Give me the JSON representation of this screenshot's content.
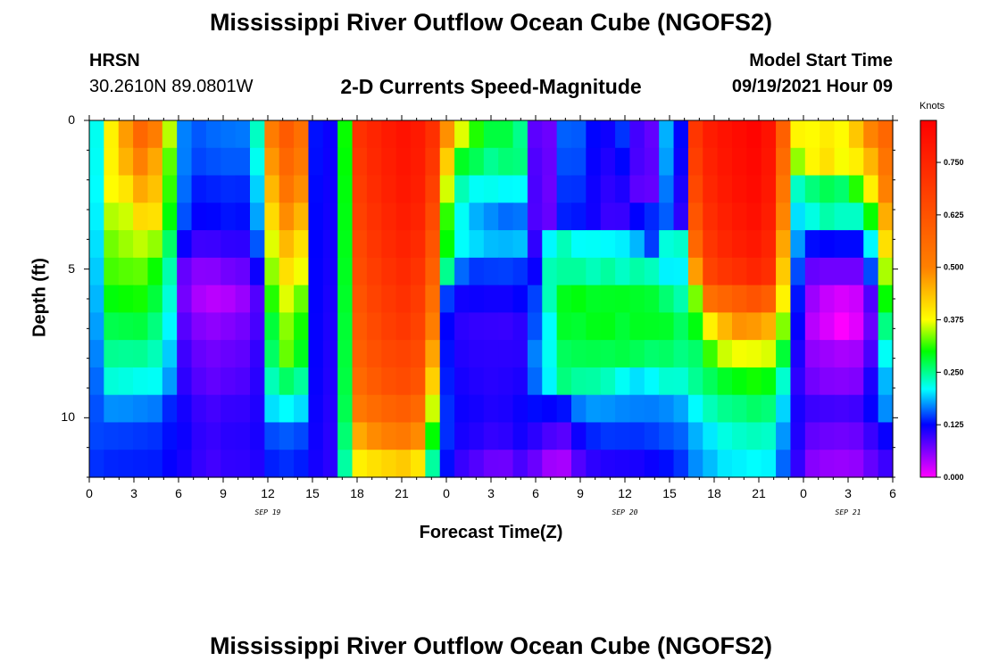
{
  "page": {
    "title_top": "Mississippi River Outflow Ocean Cube (NGOFS2)",
    "title_bottom": "Mississippi River Outflow Ocean Cube (NGOFS2)",
    "station_code": "HRSN",
    "coordinates": "30.2610N  89.0801W",
    "model_start_label": "Model Start Time",
    "model_start_value": "09/19/2021 Hour 09"
  },
  "chart_data": {
    "type": "heatmap",
    "title": "2-D Currents Speed-Magnitude",
    "xlabel": "Forecast Time(Z)",
    "ylabel": "Depth (ft)",
    "x_hours_range": [
      0,
      54
    ],
    "y_depth_range_ft": [
      0,
      12
    ],
    "x_tick_labels": [
      "0",
      "3",
      "6",
      "9",
      "12",
      "15",
      "18",
      "21",
      "0",
      "3",
      "6",
      "9",
      "12",
      "15",
      "18",
      "21",
      "0",
      "3",
      "6"
    ],
    "y_tick_labels": [
      "0",
      "5",
      "10"
    ],
    "y_tick_values": [
      0,
      5,
      10
    ],
    "date_labels": [
      {
        "text": "SEP 19",
        "hour": 12
      },
      {
        "text": "SEP 20",
        "hour": 36
      },
      {
        "text": "SEP 21",
        "hour": 51
      }
    ],
    "colorbar": {
      "unit": "Knots",
      "range": [
        0,
        0.85
      ],
      "tick_labels": [
        "0.750",
        "0.625",
        "0.500",
        "0.375",
        "0.250",
        "0.125",
        "0.000"
      ],
      "tick_values": [
        0.75,
        0.625,
        0.5,
        0.375,
        0.25,
        0.125,
        0.0
      ],
      "stops": [
        {
          "v": 0.0,
          "color": "#ff00ff"
        },
        {
          "v": 0.125,
          "color": "#0000ff"
        },
        {
          "v": 0.21,
          "color": "#00ffff"
        },
        {
          "v": 0.3,
          "color": "#00ff00"
        },
        {
          "v": 0.375,
          "color": "#ffff00"
        },
        {
          "v": 0.5,
          "color": "#ff8000"
        },
        {
          "v": 0.85,
          "color": "#ff0000"
        }
      ]
    },
    "grid_columns_hours": [
      0,
      1,
      2,
      3,
      4,
      5,
      6,
      7,
      8,
      9,
      10,
      11,
      12,
      13,
      14,
      15,
      16,
      17,
      18,
      19,
      20,
      21,
      22,
      23,
      24,
      25,
      26,
      27,
      28,
      29,
      30,
      31,
      32,
      33,
      34,
      35,
      36,
      37,
      38,
      39,
      40,
      41,
      42,
      43,
      44,
      45,
      46,
      47,
      48,
      49,
      50,
      51,
      52,
      53,
      54
    ],
    "grid_rows_depth_ft": [
      0,
      1,
      2,
      3,
      4,
      5,
      6,
      7,
      8,
      9,
      10,
      11,
      12
    ],
    "values": [
      [
        0.215,
        0.387,
        0.472,
        0.567,
        0.509,
        0.354,
        0.168,
        0.154,
        0.16,
        0.163,
        0.165,
        0.231,
        0.51,
        0.6,
        0.544,
        0.13,
        0.12,
        0.302,
        0.717,
        0.75,
        0.78,
        0.8,
        0.782,
        0.719,
        0.484,
        0.366,
        0.309,
        0.278,
        0.278,
        0.251,
        0.08,
        0.072,
        0.157,
        0.155,
        0.126,
        0.118,
        0.142,
        0.092,
        0.077,
        0.184,
        0.126,
        0.702,
        0.774,
        0.8,
        0.82,
        0.839,
        0.8,
        0.587,
        0.384,
        0.378,
        0.393,
        0.378,
        0.43,
        0.497,
        0.567
      ],
      [
        0.213,
        0.385,
        0.45,
        0.5,
        0.461,
        0.326,
        0.167,
        0.148,
        0.152,
        0.155,
        0.155,
        0.215,
        0.478,
        0.568,
        0.518,
        0.129,
        0.119,
        0.299,
        0.7,
        0.741,
        0.772,
        0.794,
        0.776,
        0.7,
        0.423,
        0.288,
        0.27,
        0.248,
        0.259,
        0.256,
        0.086,
        0.074,
        0.151,
        0.15,
        0.122,
        0.11,
        0.126,
        0.089,
        0.08,
        0.178,
        0.12,
        0.681,
        0.761,
        0.792,
        0.814,
        0.832,
        0.793,
        0.558,
        0.343,
        0.383,
        0.405,
        0.373,
        0.39,
        0.447,
        0.533
      ],
      [
        0.21,
        0.377,
        0.4,
        0.46,
        0.435,
        0.314,
        0.161,
        0.133,
        0.136,
        0.139,
        0.138,
        0.195,
        0.445,
        0.533,
        0.487,
        0.127,
        0.118,
        0.296,
        0.687,
        0.73,
        0.762,
        0.786,
        0.767,
        0.674,
        0.362,
        0.236,
        0.212,
        0.215,
        0.209,
        0.21,
        0.088,
        0.072,
        0.142,
        0.141,
        0.118,
        0.103,
        0.111,
        0.08,
        0.076,
        0.165,
        0.112,
        0.654,
        0.747,
        0.782,
        0.805,
        0.823,
        0.785,
        0.528,
        0.23,
        0.257,
        0.271,
        0.262,
        0.31,
        0.389,
        0.5
      ],
      [
        0.206,
        0.352,
        0.36,
        0.41,
        0.405,
        0.298,
        0.152,
        0.124,
        0.126,
        0.131,
        0.129,
        0.18,
        0.41,
        0.488,
        0.448,
        0.126,
        0.117,
        0.294,
        0.673,
        0.717,
        0.749,
        0.774,
        0.754,
        0.647,
        0.313,
        0.213,
        0.184,
        0.172,
        0.161,
        0.164,
        0.087,
        0.075,
        0.135,
        0.132,
        0.117,
        0.097,
        0.098,
        0.125,
        0.138,
        0.156,
        0.104,
        0.618,
        0.728,
        0.766,
        0.79,
        0.808,
        0.772,
        0.496,
        0.2,
        0.22,
        0.24,
        0.23,
        0.23,
        0.302,
        0.456
      ],
      [
        0.2,
        0.333,
        0.346,
        0.356,
        0.343,
        0.264,
        0.121,
        0.095,
        0.096,
        0.102,
        0.103,
        0.154,
        0.366,
        0.444,
        0.404,
        0.125,
        0.116,
        0.292,
        0.657,
        0.701,
        0.734,
        0.757,
        0.734,
        0.621,
        0.3,
        0.211,
        0.198,
        0.188,
        0.186,
        0.189,
        0.102,
        0.208,
        0.235,
        0.211,
        0.212,
        0.209,
        0.205,
        0.186,
        0.145,
        0.222,
        0.228,
        0.567,
        0.706,
        0.746,
        0.771,
        0.787,
        0.752,
        0.463,
        0.176,
        0.128,
        0.125,
        0.127,
        0.127,
        0.208,
        0.406
      ],
      [
        0.193,
        0.32,
        0.325,
        0.328,
        0.302,
        0.239,
        0.076,
        0.058,
        0.059,
        0.069,
        0.074,
        0.119,
        0.342,
        0.406,
        0.372,
        0.124,
        0.115,
        0.289,
        0.641,
        0.684,
        0.716,
        0.739,
        0.71,
        0.589,
        0.25,
        0.16,
        0.143,
        0.145,
        0.146,
        0.142,
        0.121,
        0.236,
        0.245,
        0.245,
        0.234,
        0.244,
        0.23,
        0.241,
        0.233,
        0.206,
        0.207,
        0.471,
        0.669,
        0.706,
        0.725,
        0.748,
        0.723,
        0.427,
        0.15,
        0.075,
        0.07,
        0.07,
        0.07,
        0.15,
        0.35
      ],
      [
        0.186,
        0.297,
        0.302,
        0.305,
        0.279,
        0.224,
        0.068,
        0.041,
        0.034,
        0.038,
        0.05,
        0.085,
        0.31,
        0.366,
        0.33,
        0.124,
        0.113,
        0.286,
        0.624,
        0.666,
        0.698,
        0.72,
        0.69,
        0.55,
        0.145,
        0.117,
        0.119,
        0.117,
        0.117,
        0.124,
        0.147,
        0.235,
        0.291,
        0.296,
        0.287,
        0.288,
        0.289,
        0.286,
        0.282,
        0.26,
        0.239,
        0.335,
        0.547,
        0.574,
        0.598,
        0.624,
        0.592,
        0.386,
        0.131,
        0.048,
        0.028,
        0.019,
        0.025,
        0.086,
        0.301
      ],
      [
        0.178,
        0.273,
        0.276,
        0.278,
        0.256,
        0.208,
        0.083,
        0.061,
        0.055,
        0.061,
        0.068,
        0.09,
        0.28,
        0.34,
        0.305,
        0.123,
        0.112,
        0.282,
        0.607,
        0.648,
        0.68,
        0.7,
        0.669,
        0.508,
        0.125,
        0.104,
        0.1,
        0.099,
        0.098,
        0.104,
        0.152,
        0.211,
        0.286,
        0.283,
        0.292,
        0.293,
        0.281,
        0.289,
        0.288,
        0.286,
        0.266,
        0.295,
        0.388,
        0.446,
        0.482,
        0.475,
        0.454,
        0.338,
        0.123,
        0.035,
        0.018,
        0.001,
        0.014,
        0.073,
        0.254
      ],
      [
        0.169,
        0.249,
        0.247,
        0.248,
        0.235,
        0.193,
        0.095,
        0.075,
        0.069,
        0.074,
        0.078,
        0.1,
        0.265,
        0.33,
        0.29,
        0.123,
        0.111,
        0.28,
        0.589,
        0.628,
        0.656,
        0.668,
        0.648,
        0.465,
        0.13,
        0.109,
        0.105,
        0.104,
        0.104,
        0.105,
        0.168,
        0.214,
        0.268,
        0.272,
        0.274,
        0.272,
        0.276,
        0.27,
        0.262,
        0.265,
        0.254,
        0.263,
        0.316,
        0.36,
        0.372,
        0.37,
        0.364,
        0.281,
        0.112,
        0.055,
        0.048,
        0.042,
        0.045,
        0.089,
        0.213
      ],
      [
        0.16,
        0.223,
        0.22,
        0.215,
        0.213,
        0.177,
        0.103,
        0.084,
        0.077,
        0.083,
        0.087,
        0.105,
        0.235,
        0.265,
        0.245,
        0.122,
        0.11,
        0.277,
        0.564,
        0.601,
        0.632,
        0.646,
        0.623,
        0.421,
        0.134,
        0.114,
        0.109,
        0.106,
        0.108,
        0.112,
        0.16,
        0.207,
        0.256,
        0.244,
        0.242,
        0.233,
        0.213,
        0.2,
        0.209,
        0.226,
        0.225,
        0.248,
        0.268,
        0.287,
        0.297,
        0.305,
        0.296,
        0.227,
        0.103,
        0.069,
        0.061,
        0.059,
        0.062,
        0.112,
        0.186
      ],
      [
        0.152,
        0.173,
        0.172,
        0.169,
        0.166,
        0.137,
        0.115,
        0.098,
        0.092,
        0.099,
        0.1,
        0.11,
        0.2,
        0.21,
        0.199,
        0.12,
        0.108,
        0.272,
        0.521,
        0.556,
        0.58,
        0.593,
        0.566,
        0.36,
        0.14,
        0.119,
        0.115,
        0.11,
        0.112,
        0.12,
        0.128,
        0.124,
        0.13,
        0.166,
        0.176,
        0.174,
        0.17,
        0.168,
        0.167,
        0.171,
        0.18,
        0.209,
        0.235,
        0.25,
        0.255,
        0.264,
        0.258,
        0.196,
        0.113,
        0.096,
        0.093,
        0.091,
        0.094,
        0.122,
        0.172
      ],
      [
        0.148,
        0.146,
        0.145,
        0.143,
        0.141,
        0.129,
        0.119,
        0.103,
        0.098,
        0.105,
        0.106,
        0.113,
        0.15,
        0.155,
        0.149,
        0.118,
        0.106,
        0.26,
        0.46,
        0.489,
        0.505,
        0.518,
        0.49,
        0.3,
        0.14,
        0.114,
        0.108,
        0.1,
        0.103,
        0.115,
        0.104,
        0.088,
        0.082,
        0.119,
        0.137,
        0.143,
        0.142,
        0.141,
        0.145,
        0.152,
        0.158,
        0.184,
        0.203,
        0.22,
        0.228,
        0.233,
        0.229,
        0.175,
        0.11,
        0.077,
        0.072,
        0.07,
        0.073,
        0.097,
        0.121
      ],
      [
        0.141,
        0.137,
        0.136,
        0.135,
        0.134,
        0.123,
        0.114,
        0.1,
        0.093,
        0.101,
        0.102,
        0.109,
        0.135,
        0.14,
        0.134,
        0.115,
        0.105,
        0.243,
        0.389,
        0.405,
        0.416,
        0.427,
        0.4,
        0.244,
        0.129,
        0.098,
        0.085,
        0.072,
        0.071,
        0.089,
        0.073,
        0.047,
        0.043,
        0.085,
        0.103,
        0.109,
        0.111,
        0.113,
        0.12,
        0.129,
        0.142,
        0.172,
        0.188,
        0.203,
        0.206,
        0.21,
        0.207,
        0.159,
        0.101,
        0.059,
        0.052,
        0.05,
        0.053,
        0.076,
        0.096
      ]
    ]
  }
}
